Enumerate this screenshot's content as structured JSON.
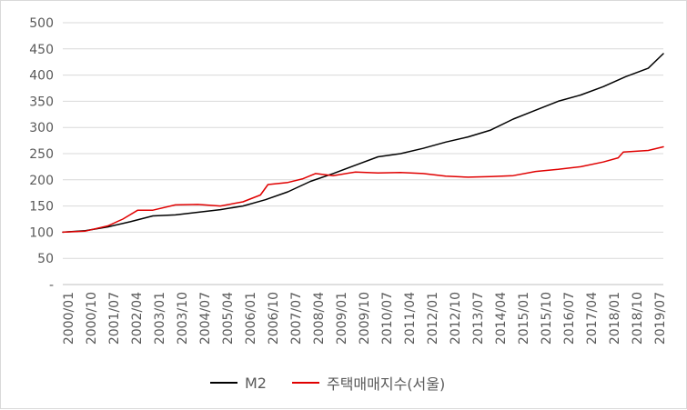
{
  "chart_data": {
    "type": "line",
    "title": "",
    "xlabel": "",
    "ylabel": "",
    "ylim": [
      0,
      500
    ],
    "yticks": [
      "-",
      "50",
      "100",
      "150",
      "200",
      "250",
      "300",
      "350",
      "400",
      "450",
      "500"
    ],
    "xticks": [
      "2000/01",
      "2000/10",
      "2001/07",
      "2002/04",
      "2003/01",
      "2003/10",
      "2004/07",
      "2005/04",
      "2006/01",
      "2006/10",
      "2007/07",
      "2008/04",
      "2009/01",
      "2009/10",
      "2010/07",
      "2011/04",
      "2012/01",
      "2012/10",
      "2013/07",
      "2014/04",
      "2015/01",
      "2015/10",
      "2016/07",
      "2017/04",
      "2018/01",
      "2018/10",
      "2019/07"
    ],
    "grid": true,
    "legend_position": "bottom",
    "series": [
      {
        "name": "M2",
        "color": "#000000",
        "points": [
          {
            "x": "2000-01-01",
            "y": 100
          },
          {
            "x": "2000-10-01",
            "y": 103
          },
          {
            "x": "2001-07-01",
            "y": 110
          },
          {
            "x": "2002-04-01",
            "y": 120
          },
          {
            "x": "2003-01-01",
            "y": 131
          },
          {
            "x": "2003-10-01",
            "y": 133
          },
          {
            "x": "2004-07-01",
            "y": 138
          },
          {
            "x": "2005-04-01",
            "y": 143
          },
          {
            "x": "2006-01-01",
            "y": 150
          },
          {
            "x": "2006-10-01",
            "y": 162
          },
          {
            "x": "2007-07-01",
            "y": 177
          },
          {
            "x": "2008-04-01",
            "y": 197
          },
          {
            "x": "2009-01-01",
            "y": 212
          },
          {
            "x": "2009-10-01",
            "y": 228
          },
          {
            "x": "2010-07-01",
            "y": 244
          },
          {
            "x": "2011-04-01",
            "y": 250
          },
          {
            "x": "2012-01-01",
            "y": 260
          },
          {
            "x": "2012-10-01",
            "y": 272
          },
          {
            "x": "2013-07-01",
            "y": 282
          },
          {
            "x": "2014-04-01",
            "y": 295
          },
          {
            "x": "2015-01-01",
            "y": 316
          },
          {
            "x": "2015-10-01",
            "y": 333
          },
          {
            "x": "2016-07-01",
            "y": 350
          },
          {
            "x": "2017-04-01",
            "y": 362
          },
          {
            "x": "2018-01-01",
            "y": 378
          },
          {
            "x": "2018-10-01",
            "y": 397
          },
          {
            "x": "2019-07-01",
            "y": 413
          },
          {
            "x": "2020-01-01",
            "y": 441
          }
        ]
      },
      {
        "name": "주택매매지수(서울)",
        "color": "#e00000",
        "points": [
          {
            "x": "2000-01-01",
            "y": 100
          },
          {
            "x": "2000-10-01",
            "y": 102
          },
          {
            "x": "2001-07-01",
            "y": 112
          },
          {
            "x": "2002-01-01",
            "y": 125
          },
          {
            "x": "2002-07-01",
            "y": 142
          },
          {
            "x": "2003-01-01",
            "y": 142
          },
          {
            "x": "2003-10-01",
            "y": 152
          },
          {
            "x": "2004-07-01",
            "y": 153
          },
          {
            "x": "2005-04-01",
            "y": 150
          },
          {
            "x": "2006-01-01",
            "y": 158
          },
          {
            "x": "2006-08-01",
            "y": 171
          },
          {
            "x": "2006-11-01",
            "y": 191
          },
          {
            "x": "2007-07-01",
            "y": 195
          },
          {
            "x": "2008-01-01",
            "y": 202
          },
          {
            "x": "2008-06-01",
            "y": 212
          },
          {
            "x": "2009-01-01",
            "y": 208
          },
          {
            "x": "2009-10-01",
            "y": 215
          },
          {
            "x": "2010-07-01",
            "y": 213
          },
          {
            "x": "2011-04-01",
            "y": 214
          },
          {
            "x": "2012-01-01",
            "y": 212
          },
          {
            "x": "2012-10-01",
            "y": 207
          },
          {
            "x": "2013-07-01",
            "y": 205
          },
          {
            "x": "2014-04-01",
            "y": 206
          },
          {
            "x": "2015-01-01",
            "y": 208
          },
          {
            "x": "2015-10-01",
            "y": 216
          },
          {
            "x": "2016-07-01",
            "y": 220
          },
          {
            "x": "2017-04-01",
            "y": 225
          },
          {
            "x": "2018-01-01",
            "y": 234
          },
          {
            "x": "2018-07-01",
            "y": 242
          },
          {
            "x": "2018-09-01",
            "y": 253
          },
          {
            "x": "2019-07-01",
            "y": 256
          },
          {
            "x": "2020-01-01",
            "y": 263
          }
        ]
      }
    ]
  }
}
